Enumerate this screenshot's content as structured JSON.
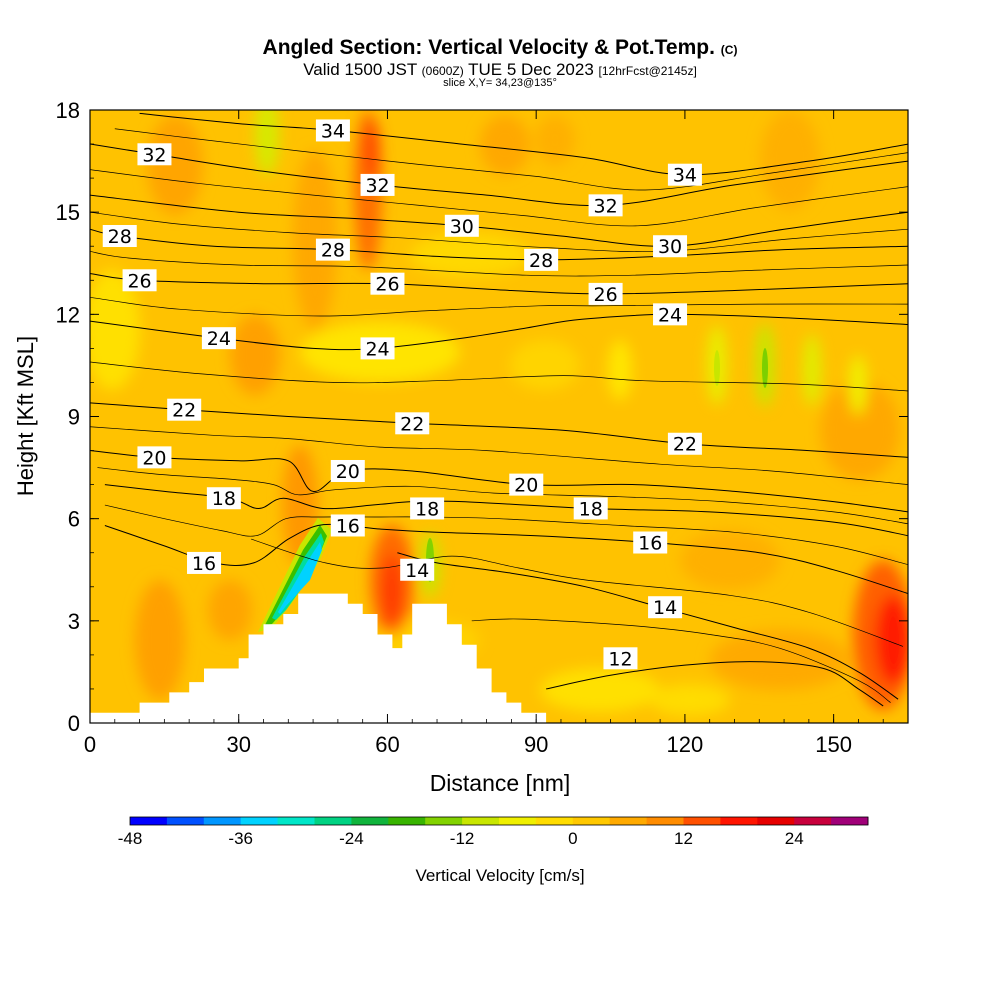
{
  "header": {
    "title": "Angled Section: Vertical Velocity & Pot.Temp.",
    "copyright": "(C)",
    "valid_prefix": "Valid 1500 JST",
    "valid_zulu": "(0600Z)",
    "valid_date": "TUE 5 Dec 2023",
    "forecast": "[12hrFcst@2145z]",
    "slice": "slice X,Y= 34,23@135°"
  },
  "chart_data": {
    "type": "heatmap",
    "xlabel": "Distance [nm]",
    "ylabel": "Height [Kft MSL]",
    "xlim": [
      0,
      165
    ],
    "ylim": [
      0,
      18
    ],
    "xticks": [
      "0",
      "30",
      "60",
      "90",
      "120",
      "150"
    ],
    "yticks": [
      "0",
      "3",
      "6",
      "9",
      "12",
      "15",
      "18"
    ],
    "grid": false,
    "terrain": [
      [
        0,
        0.3
      ],
      [
        10,
        0.3
      ],
      [
        10,
        0.6
      ],
      [
        16,
        0.6
      ],
      [
        16,
        0.9
      ],
      [
        20,
        0.9
      ],
      [
        20,
        1.2
      ],
      [
        23,
        1.2
      ],
      [
        23,
        1.6
      ],
      [
        30,
        1.6
      ],
      [
        30,
        1.9
      ],
      [
        32,
        1.9
      ],
      [
        32,
        2.6
      ],
      [
        35,
        2.6
      ],
      [
        35,
        2.9
      ],
      [
        39,
        2.9
      ],
      [
        39,
        3.2
      ],
      [
        42,
        3.2
      ],
      [
        42,
        3.8
      ],
      [
        52,
        3.8
      ],
      [
        52,
        3.5
      ],
      [
        55,
        3.5
      ],
      [
        55,
        3.2
      ],
      [
        58,
        3.2
      ],
      [
        58,
        2.6
      ],
      [
        61,
        2.6
      ],
      [
        61,
        2.2
      ],
      [
        63,
        2.2
      ],
      [
        63,
        2.6
      ],
      [
        65,
        2.6
      ],
      [
        65,
        3.5
      ],
      [
        72,
        3.5
      ],
      [
        72,
        2.9
      ],
      [
        75,
        2.9
      ],
      [
        75,
        2.3
      ],
      [
        78,
        2.3
      ],
      [
        78,
        1.6
      ],
      [
        81,
        1.6
      ],
      [
        81,
        0.9
      ],
      [
        84,
        0.9
      ],
      [
        84,
        0.6
      ],
      [
        87,
        0.6
      ],
      [
        87,
        0.3
      ],
      [
        92,
        0.3
      ],
      [
        92,
        0
      ]
    ],
    "theta_contours": [
      {
        "value": 12,
        "labels": [
          [
            107,
            1.9
          ]
        ],
        "pts": [
          [
            92,
            1.0
          ],
          [
            105,
            1.4
          ],
          [
            120,
            1.7
          ],
          [
            135,
            1.8
          ],
          [
            148,
            1.6
          ],
          [
            155,
            1.0
          ],
          [
            160,
            0.5
          ]
        ]
      },
      {
        "value": 14,
        "labels": [
          [
            66,
            4.5
          ],
          [
            116,
            3.4
          ]
        ],
        "pts": [
          [
            62,
            5.0
          ],
          [
            70,
            4.7
          ],
          [
            85,
            4.4
          ],
          [
            100,
            4.0
          ],
          [
            115,
            3.4
          ],
          [
            130,
            2.8
          ],
          [
            145,
            2.2
          ],
          [
            155,
            1.5
          ],
          [
            163,
            0.7
          ]
        ]
      },
      {
        "value": 16,
        "labels": [
          [
            23,
            4.7
          ],
          [
            52,
            5.8
          ],
          [
            113,
            5.3
          ]
        ],
        "pts": [
          [
            3,
            5.8
          ],
          [
            15,
            5.2
          ],
          [
            25,
            4.7
          ],
          [
            33,
            4.7
          ],
          [
            40,
            5.4
          ],
          [
            46,
            5.8
          ],
          [
            52,
            5.8
          ],
          [
            58,
            5.7
          ],
          [
            70,
            5.6
          ],
          [
            90,
            5.5
          ],
          [
            113,
            5.3
          ],
          [
            135,
            5.0
          ],
          [
            150,
            4.5
          ],
          [
            165,
            3.8
          ]
        ]
      },
      {
        "value": 18,
        "labels": [
          [
            27,
            6.6
          ],
          [
            68,
            6.3
          ],
          [
            101,
            6.3
          ]
        ],
        "pts": [
          [
            3,
            7.0
          ],
          [
            15,
            6.8
          ],
          [
            28,
            6.6
          ],
          [
            34,
            6.3
          ],
          [
            39,
            6.6
          ],
          [
            47,
            6.3
          ],
          [
            57,
            6.4
          ],
          [
            65,
            6.5
          ],
          [
            75,
            6.5
          ],
          [
            101,
            6.3
          ],
          [
            125,
            6.2
          ],
          [
            150,
            5.9
          ],
          [
            165,
            5.5
          ]
        ]
      },
      {
        "value": 20,
        "labels": [
          [
            13,
            7.8
          ],
          [
            52,
            7.4
          ],
          [
            88,
            7.0
          ]
        ],
        "pts": [
          [
            0,
            8.0
          ],
          [
            13,
            7.8
          ],
          [
            30,
            7.7
          ],
          [
            40,
            7.7
          ],
          [
            45,
            6.8
          ],
          [
            52,
            7.4
          ],
          [
            65,
            7.4
          ],
          [
            88,
            7.0
          ],
          [
            110,
            7.0
          ],
          [
            130,
            6.8
          ],
          [
            150,
            6.5
          ],
          [
            165,
            6.2
          ]
        ]
      },
      {
        "value": 22,
        "labels": [
          [
            19,
            9.2
          ],
          [
            65,
            8.8
          ],
          [
            120,
            8.2
          ]
        ],
        "pts": [
          [
            0,
            9.4
          ],
          [
            19,
            9.2
          ],
          [
            40,
            9.0
          ],
          [
            65,
            8.8
          ],
          [
            95,
            8.6
          ],
          [
            120,
            8.2
          ],
          [
            145,
            8.0
          ],
          [
            165,
            7.8
          ]
        ]
      },
      {
        "value": 24,
        "labels": [
          [
            26,
            11.3
          ],
          [
            58,
            11.0
          ],
          [
            117,
            12.0
          ]
        ],
        "pts": [
          [
            0,
            11.8
          ],
          [
            26,
            11.3
          ],
          [
            45,
            11.0
          ],
          [
            58,
            11.0
          ],
          [
            75,
            11.3
          ],
          [
            88,
            11.6
          ],
          [
            96,
            11.8
          ],
          [
            103,
            11.9
          ],
          [
            117,
            12.0
          ],
          [
            140,
            11.9
          ],
          [
            165,
            11.7
          ]
        ]
      },
      {
        "value": 26,
        "labels": [
          [
            10,
            13.0
          ],
          [
            60,
            12.9
          ],
          [
            104,
            12.6
          ]
        ],
        "pts": [
          [
            0,
            13.2
          ],
          [
            10,
            13.0
          ],
          [
            35,
            12.9
          ],
          [
            60,
            12.9
          ],
          [
            85,
            12.7
          ],
          [
            104,
            12.6
          ],
          [
            130,
            12.7
          ],
          [
            165,
            12.9
          ]
        ]
      },
      {
        "value": 28,
        "labels": [
          [
            6,
            14.3
          ],
          [
            49,
            13.9
          ],
          [
            91,
            13.6
          ]
        ],
        "pts": [
          [
            0,
            14.5
          ],
          [
            6,
            14.3
          ],
          [
            25,
            14.0
          ],
          [
            49,
            13.9
          ],
          [
            70,
            13.7
          ],
          [
            91,
            13.6
          ],
          [
            115,
            13.7
          ],
          [
            140,
            13.9
          ],
          [
            165,
            14.0
          ]
        ]
      },
      {
        "value": 30,
        "labels": [
          [
            75,
            14.6
          ],
          [
            117,
            14.0
          ]
        ],
        "pts": [
          [
            0,
            15.5
          ],
          [
            30,
            15.0
          ],
          [
            55,
            14.8
          ],
          [
            75,
            14.6
          ],
          [
            95,
            14.3
          ],
          [
            117,
            14.0
          ],
          [
            140,
            14.5
          ],
          [
            165,
            15.0
          ]
        ]
      },
      {
        "value": 32,
        "labels": [
          [
            13,
            16.7
          ],
          [
            58,
            15.8
          ],
          [
            104,
            15.2
          ]
        ],
        "pts": [
          [
            0,
            17.0
          ],
          [
            13,
            16.7
          ],
          [
            35,
            16.2
          ],
          [
            58,
            15.8
          ],
          [
            80,
            15.5
          ],
          [
            104,
            15.2
          ],
          [
            130,
            15.8
          ],
          [
            165,
            16.5
          ]
        ]
      },
      {
        "value": 34,
        "labels": [
          [
            49,
            17.4
          ],
          [
            120,
            16.1
          ]
        ],
        "pts": [
          [
            10,
            17.9
          ],
          [
            30,
            17.6
          ],
          [
            49,
            17.4
          ],
          [
            75,
            17.0
          ],
          [
            100,
            16.6
          ],
          [
            120,
            16.1
          ],
          [
            145,
            16.5
          ],
          [
            165,
            17.0
          ]
        ]
      }
    ],
    "colorbar": {
      "label": "Vertical Velocity [cm/s]",
      "tick_labels": [
        "-48",
        "-36",
        "-24",
        "-12",
        "0",
        "12",
        "24"
      ],
      "tick_values": [
        -48,
        -36,
        -24,
        -12,
        0,
        12,
        24
      ],
      "min": -48,
      "max": 32,
      "step": 4,
      "colors": [
        "#0000ff",
        "#0050ff",
        "#0096ff",
        "#00d2ff",
        "#00e6c8",
        "#00d282",
        "#10b43c",
        "#38b400",
        "#82d200",
        "#c8e600",
        "#f0f000",
        "#ffdc00",
        "#ffc800",
        "#ffaa00",
        "#ff8c00",
        "#ff5000",
        "#ff1400",
        "#e60000",
        "#c8003c",
        "#a00078"
      ]
    }
  }
}
